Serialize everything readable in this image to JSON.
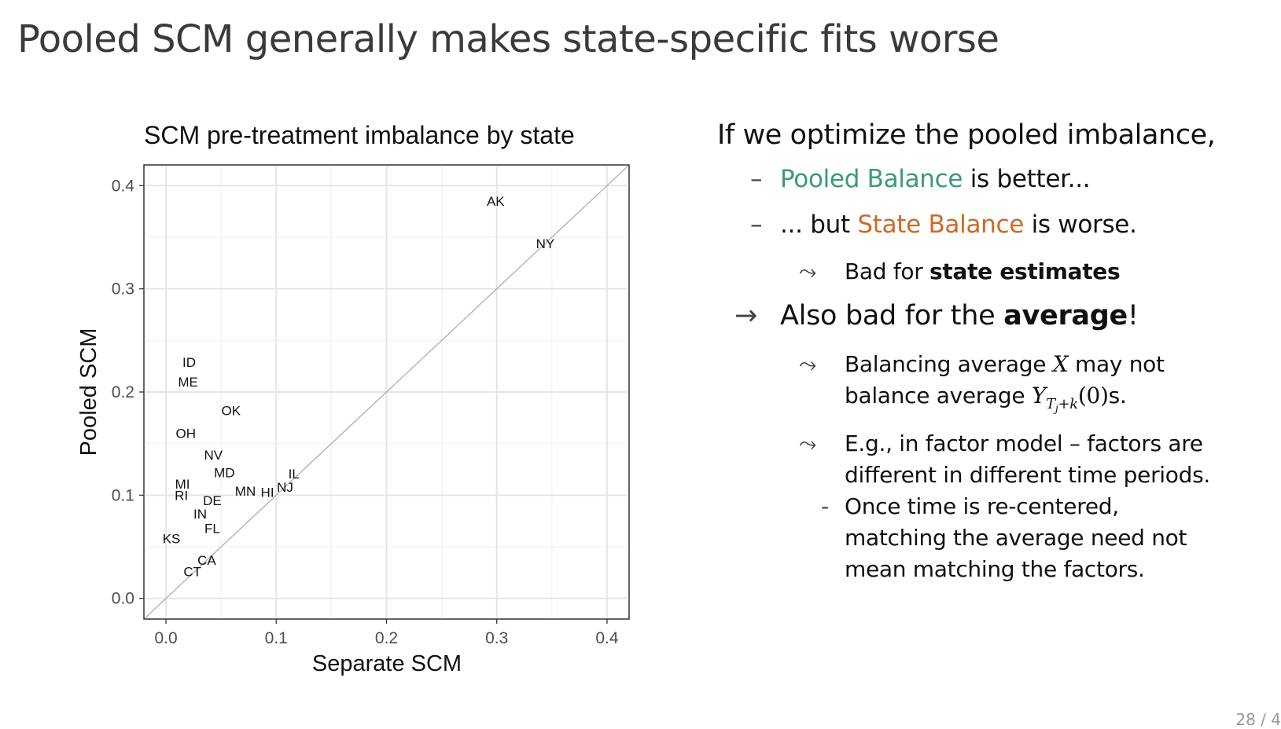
{
  "slide": {
    "title": "Pooled SCM generally makes state-specific fits worse",
    "page": "28 / 4"
  },
  "bullets": {
    "lead": "If we optimize the pooled imbalance,",
    "b1": {
      "marker": "–",
      "highlight": "Pooled Balance",
      "rest": " is better..."
    },
    "b2": {
      "marker": "–",
      "pre": "... but ",
      "highlight": "State Balance",
      "rest": " is worse."
    },
    "b3": {
      "marker": "⤳",
      "pre": "Bad for ",
      "bold": "state estimates"
    },
    "b4": {
      "marker": "→",
      "pre": "Also bad for the ",
      "bold": "average",
      "post": "!"
    },
    "b5": {
      "marker": "⤳",
      "line1_pre": "Balancing average ",
      "line1_math": "X",
      "line1_post": " may not",
      "line2_pre": "balance average ",
      "line2_math": "Y",
      "line2_sub": "T",
      "line2_subsub": "j",
      "line2_subrest": "+k",
      "line2_arg": "(0)",
      "line2_post": "s."
    },
    "b6": {
      "marker": "⤳",
      "line1": "E.g., in factor model – factors are",
      "line2": "different in different time periods."
    },
    "b7": {
      "marker": "-",
      "line1": "Once time is re-centered,",
      "line2": "matching the average need not",
      "line3": "mean matching the factors."
    }
  },
  "chart_data": {
    "type": "scatter",
    "title": "SCM pre-treatment imbalance by state",
    "xlabel": "Separate SCM",
    "ylabel": "Pooled SCM",
    "xlim": [
      -0.02,
      0.42
    ],
    "ylim": [
      -0.02,
      0.42
    ],
    "xticks": [
      0.0,
      0.1,
      0.2,
      0.3,
      0.4
    ],
    "yticks": [
      0.0,
      0.1,
      0.2,
      0.3,
      0.4
    ],
    "tick_labels": [
      "0.0",
      "0.1",
      "0.2",
      "0.3",
      "0.4"
    ],
    "grid": true,
    "reference_line": "y = x",
    "points": [
      {
        "label": "AK",
        "x": 0.299,
        "y": 0.385
      },
      {
        "label": "NY",
        "x": 0.344,
        "y": 0.344
      },
      {
        "label": "ID",
        "x": 0.021,
        "y": 0.229
      },
      {
        "label": "ME",
        "x": 0.02,
        "y": 0.21
      },
      {
        "label": "OK",
        "x": 0.059,
        "y": 0.182
      },
      {
        "label": "OH",
        "x": 0.018,
        "y": 0.16
      },
      {
        "label": "NV",
        "x": 0.043,
        "y": 0.139
      },
      {
        "label": "MD",
        "x": 0.053,
        "y": 0.122
      },
      {
        "label": "IL",
        "x": 0.116,
        "y": 0.121
      },
      {
        "label": "MI",
        "x": 0.015,
        "y": 0.111
      },
      {
        "label": "NJ",
        "x": 0.108,
        "y": 0.108
      },
      {
        "label": "MN",
        "x": 0.072,
        "y": 0.104
      },
      {
        "label": "HI",
        "x": 0.092,
        "y": 0.103
      },
      {
        "label": "RI",
        "x": 0.014,
        "y": 0.1
      },
      {
        "label": "DE",
        "x": 0.042,
        "y": 0.095
      },
      {
        "label": "IN",
        "x": 0.031,
        "y": 0.082
      },
      {
        "label": "FL",
        "x": 0.042,
        "y": 0.068
      },
      {
        "label": "KS",
        "x": 0.005,
        "y": 0.058
      },
      {
        "label": "CA",
        "x": 0.037,
        "y": 0.037
      },
      {
        "label": "CT",
        "x": 0.024,
        "y": 0.026
      }
    ]
  }
}
